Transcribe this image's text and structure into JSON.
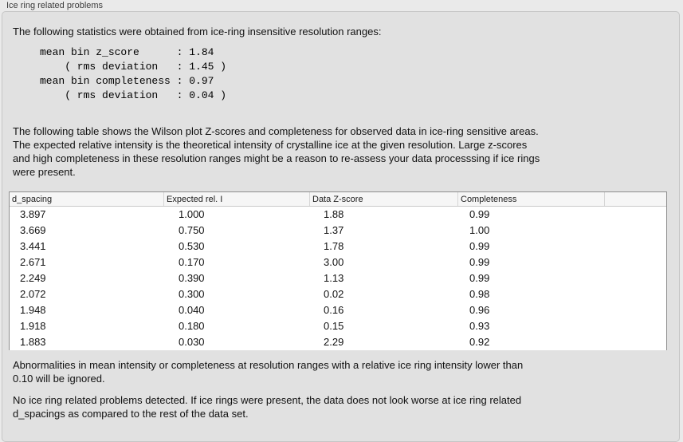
{
  "panel": {
    "title": "Ice ring related problems",
    "intro": "The following statistics were obtained from ice-ring insensitive resolution ranges:",
    "stats_block": "mean bin z_score      : 1.84\n    ( rms deviation   : 1.45 )\nmean bin completeness : 0.97\n    ( rms deviation   : 0.04 )",
    "table_description": "The following table shows the Wilson plot Z-scores and completeness for observed data in ice-ring sensitive areas.\nThe expected relative intensity is the theoretical intensity of crystalline ice at the given resolution. Large z-scores\nand high completeness in these resolution ranges might be a reason to re-assess your data processsing if ice rings\nwere present.",
    "ignore_note": "Abnormalities in mean intensity or completeness at resolution ranges with a relative ice ring intensity lower than\n0.10 will be ignored.",
    "conclusion": "No ice ring related problems detected. If ice rings were present, the data does not look worse at ice ring related\nd_spacings as compared to the rest of the data set."
  },
  "stats": {
    "mean_bin_z_score": "1.84",
    "z_score_rms_deviation": "1.45",
    "mean_bin_completeness": "0.97",
    "completeness_rms_deviation": "0.04"
  },
  "table": {
    "columns": [
      "d_spacing",
      "Expected rel. I",
      "Data Z-score",
      "Completeness"
    ],
    "rows": [
      [
        "3.897",
        "1.000",
        "1.88",
        "0.99"
      ],
      [
        "3.669",
        "0.750",
        "1.37",
        "1.00"
      ],
      [
        "3.441",
        "0.530",
        "1.78",
        "0.99"
      ],
      [
        "2.671",
        "0.170",
        "3.00",
        "0.99"
      ],
      [
        "2.249",
        "0.390",
        "1.13",
        "0.99"
      ],
      [
        "2.072",
        "0.300",
        "0.02",
        "0.98"
      ],
      [
        "1.948",
        "0.040",
        "0.16",
        "0.96"
      ],
      [
        "1.918",
        "0.180",
        "0.15",
        "0.93"
      ],
      [
        "1.883",
        "0.030",
        "2.29",
        "0.92"
      ]
    ]
  },
  "colors": {
    "page_bg": "#eaeaea",
    "box_bg": "#e1e1e1",
    "box_border": "#c5c5c5",
    "table_border": "#8e8e8e",
    "table_header_bg": "#f6f6f6"
  }
}
